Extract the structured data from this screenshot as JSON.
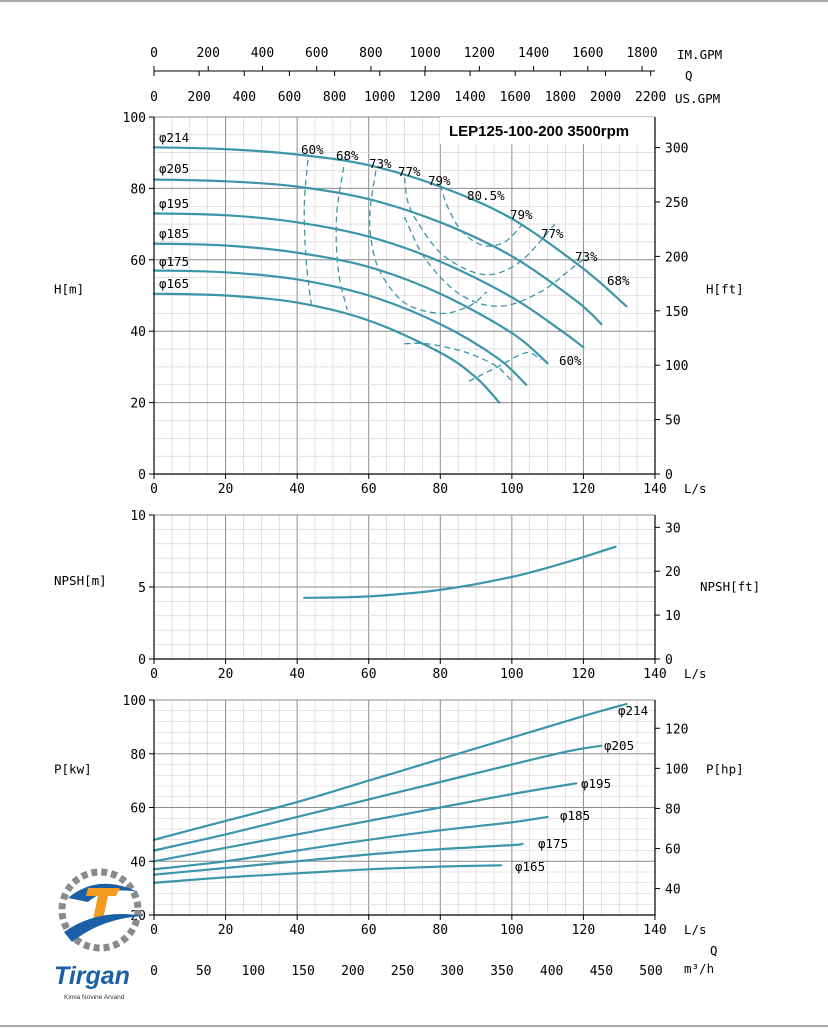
{
  "chart_data": [
    {
      "type": "line",
      "title": "LEP125-100-200 3500rpm",
      "xlabel": "L/s",
      "ylabel": "H[m]",
      "ylabel_right": "H[ft]",
      "xlim": [
        0,
        140
      ],
      "ylim": [
        0,
        100
      ],
      "x_ticks": [
        "0",
        "20",
        "40",
        "60",
        "80",
        "100",
        "120",
        "140"
      ],
      "y_ticks": [
        "0",
        "20",
        "40",
        "60",
        "80",
        "100"
      ],
      "y_right_ticks": [
        "0",
        "50",
        "100",
        "150",
        "200",
        "250",
        "300"
      ],
      "top_axes": [
        {
          "unit": "IM.GPM",
          "ticks": [
            "0",
            "200",
            "400",
            "600",
            "800",
            "1000",
            "1200",
            "1400",
            "1600",
            "1800"
          ]
        },
        {
          "unit": "Q",
          "ticks": []
        },
        {
          "unit": "US.GPM",
          "ticks": [
            "0",
            "200",
            "400",
            "600",
            "800",
            "1000",
            "1200",
            "1400",
            "1600",
            "1800",
            "2000",
            "2200"
          ]
        }
      ],
      "series": [
        {
          "name": "φ214",
          "x": [
            0,
            20,
            40,
            60,
            80,
            100,
            120,
            132
          ],
          "y": [
            91.5,
            91,
            89.5,
            86.5,
            80.5,
            71.5,
            57.5,
            47
          ]
        },
        {
          "name": "φ205",
          "x": [
            0,
            20,
            40,
            60,
            80,
            100,
            118,
            125
          ],
          "y": [
            82.5,
            82,
            80.5,
            77,
            70.5,
            61,
            48.5,
            42
          ]
        },
        {
          "name": "φ195",
          "x": [
            0,
            20,
            40,
            60,
            80,
            100,
            114,
            120
          ],
          "y": [
            73,
            72.5,
            70.5,
            66.5,
            59.5,
            49.5,
            40,
            35.5
          ]
        },
        {
          "name": "φ185",
          "x": [
            0,
            20,
            40,
            60,
            80,
            100,
            110
          ],
          "y": [
            64.5,
            64,
            62,
            58,
            50.5,
            39.5,
            31
          ]
        },
        {
          "name": "φ175",
          "x": [
            0,
            20,
            40,
            60,
            80,
            96,
            104
          ],
          "y": [
            57,
            56.5,
            54.5,
            50,
            42,
            32.5,
            25
          ]
        },
        {
          "name": "φ165",
          "x": [
            0,
            20,
            40,
            60,
            80,
            90,
            96.5
          ],
          "y": [
            50.5,
            50,
            48,
            43,
            34,
            27,
            20
          ]
        }
      ],
      "efficiency_labels": [
        "60%",
        "68%",
        "73%",
        "77%",
        "79%",
        "80.5%",
        "79%",
        "77%",
        "73%",
        "68%",
        "60%"
      ],
      "efficiency_curves": [
        {
          "label": "60%",
          "x": [
            43,
            42,
            42.5,
            44
          ],
          "y": [
            88,
            75,
            60,
            47
          ]
        },
        {
          "label": "68%",
          "x": [
            53,
            51,
            51.5,
            54
          ],
          "y": [
            86,
            72,
            57,
            46
          ]
        },
        {
          "label": "73%",
          "x": [
            62,
            60.5,
            60.5,
            63,
            70,
            80,
            88,
            93
          ],
          "y": [
            85,
            75,
            67,
            57,
            48,
            45,
            47,
            51
          ]
        },
        {
          "label": "77%",
          "x": [
            70,
            71,
            74,
            80,
            88,
            95,
            103,
            112
          ],
          "y": [
            83,
            76,
            70,
            62,
            57,
            56,
            60,
            70
          ]
        },
        {
          "label": "79%",
          "x": [
            80,
            82,
            86,
            92,
            98,
            103
          ],
          "y": [
            81,
            75,
            68,
            64,
            65,
            70
          ]
        },
        {
          "label": "73%",
          "x": [
            70,
            76,
            86,
            97,
            108,
            116,
            121
          ],
          "y": [
            72,
            60,
            50,
            47,
            51,
            57,
            61
          ]
        },
        {
          "label": "60%",
          "x": [
            70,
            76,
            84,
            90,
            96,
            100
          ],
          "y": [
            36.5,
            36.5,
            35,
            33,
            30,
            26
          ]
        },
        {
          "label": "60%",
          "x": [
            88,
            96,
            104,
            108
          ],
          "y": [
            26,
            30,
            34,
            32
          ]
        }
      ]
    },
    {
      "type": "line",
      "xlabel": "L/s",
      "ylabel": "NPSH[m]",
      "ylabel_right": "NPSH[ft]",
      "xlim": [
        0,
        140
      ],
      "ylim": [
        0,
        10
      ],
      "x_ticks": [
        "0",
        "20",
        "40",
        "60",
        "80",
        "100",
        "120",
        "140"
      ],
      "y_ticks": [
        "0",
        "5",
        "10"
      ],
      "y_right_ticks": [
        "0",
        "10",
        "20",
        "30"
      ],
      "series": [
        {
          "name": "",
          "x": [
            42,
            60,
            80,
            100,
            115,
            129
          ],
          "y": [
            4.25,
            4.35,
            4.8,
            5.7,
            6.7,
            7.8
          ]
        }
      ]
    },
    {
      "type": "line",
      "xlabel": "L/s",
      "ylabel": "P[kw]",
      "ylabel_right": "P[hp]",
      "xlim": [
        0,
        140
      ],
      "ylim": [
        20,
        100
      ],
      "x_ticks": [
        "0",
        "20",
        "40",
        "60",
        "80",
        "100",
        "120",
        "140"
      ],
      "y_ticks": [
        "20",
        "40",
        "60",
        "80",
        "100"
      ],
      "y_right_ticks": [
        "40",
        "60",
        "80",
        "100",
        "120"
      ],
      "bottom_axes": [
        {
          "unit": "Q",
          "ticks": []
        },
        {
          "unit": "m³/h",
          "ticks": [
            "0",
            "50",
            "100",
            "150",
            "200",
            "250",
            "300",
            "350",
            "400",
            "450",
            "500"
          ]
        }
      ],
      "series": [
        {
          "name": "φ214",
          "x": [
            0,
            20,
            40,
            60,
            80,
            100,
            120,
            132
          ],
          "y": [
            48,
            55,
            62,
            70,
            78,
            86,
            94,
            98.5
          ]
        },
        {
          "name": "φ205",
          "x": [
            0,
            20,
            40,
            60,
            80,
            100,
            116,
            125
          ],
          "y": [
            44,
            50,
            56.5,
            63,
            69.5,
            76,
            81,
            83
          ]
        },
        {
          "name": "φ195",
          "x": [
            0,
            20,
            40,
            60,
            80,
            100,
            118
          ],
          "y": [
            40,
            45,
            50,
            55,
            60,
            65,
            69
          ]
        },
        {
          "name": "φ185",
          "x": [
            0,
            20,
            40,
            60,
            80,
            100,
            110
          ],
          "y": [
            37,
            40,
            44,
            48,
            51.5,
            54.5,
            56.5
          ]
        },
        {
          "name": "φ175",
          "x": [
            0,
            20,
            40,
            60,
            80,
            100,
            103
          ],
          "y": [
            35,
            37.5,
            40,
            42.5,
            44.5,
            46,
            46.5
          ]
        },
        {
          "name": "φ165",
          "x": [
            0,
            20,
            40,
            60,
            80,
            97
          ],
          "y": [
            32,
            34,
            35.5,
            37,
            38,
            38.5
          ]
        }
      ]
    }
  ],
  "logo": {
    "brand": "Tirgan",
    "tagline": "Kimia Novine Arvand"
  },
  "colors": {
    "curve": "#3c95aa",
    "grid": "#b5b5b5",
    "axis": "#000000",
    "logo_blue": "#1a5fa8",
    "logo_orange": "#f39a22"
  }
}
